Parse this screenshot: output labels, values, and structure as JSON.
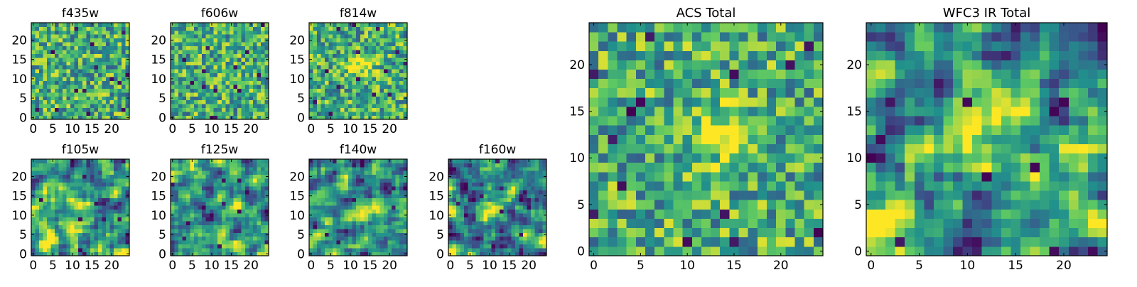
{
  "figure": {
    "colormap": "viridis",
    "colormap_stops": [
      "#440154",
      "#3b528b",
      "#21918c",
      "#5ec962",
      "#fde725"
    ]
  },
  "chart_data": [
    {
      "type": "heatmap",
      "title": "f435w",
      "grid_size": [
        25,
        25
      ],
      "xlim": [
        -0.5,
        24.5
      ],
      "ylim": [
        -0.5,
        24.5
      ],
      "xticks": [
        0,
        5,
        10,
        15,
        20
      ],
      "yticks": [
        0,
        5,
        10,
        15,
        20
      ],
      "texture": "noise",
      "peaks": []
    },
    {
      "type": "heatmap",
      "title": "f606w",
      "grid_size": [
        25,
        25
      ],
      "xlim": [
        -0.5,
        24.5
      ],
      "ylim": [
        -0.5,
        24.5
      ],
      "xticks": [
        0,
        5,
        10,
        15,
        20
      ],
      "yticks": [
        0,
        5,
        10,
        15,
        20
      ],
      "texture": "noise",
      "peaks": []
    },
    {
      "type": "heatmap",
      "title": "f814w",
      "grid_size": [
        25,
        25
      ],
      "xlim": [
        -0.5,
        24.5
      ],
      "ylim": [
        -0.5,
        24.5
      ],
      "xticks": [
        0,
        5,
        10,
        15,
        20
      ],
      "yticks": [
        0,
        5,
        10,
        15,
        20
      ],
      "texture": "noise",
      "peaks": [
        {
          "x": 13,
          "y": 13,
          "amp": 0.35,
          "sigma": 2.0
        }
      ]
    },
    {
      "type": "heatmap",
      "title": "f105w",
      "grid_size": [
        25,
        25
      ],
      "xlim": [
        -0.5,
        24.5
      ],
      "ylim": [
        -0.5,
        24.5
      ],
      "xticks": [
        0,
        5,
        10,
        15,
        20
      ],
      "yticks": [
        0,
        5,
        10,
        15,
        20
      ],
      "texture": "smooth",
      "peaks": [
        {
          "x": 13,
          "y": 12,
          "amp": 0.35,
          "sigma": 2.5
        },
        {
          "x": 3,
          "y": 4,
          "amp": 0.4,
          "sigma": 2.5
        }
      ]
    },
    {
      "type": "heatmap",
      "title": "f125w",
      "grid_size": [
        25,
        25
      ],
      "xlim": [
        -0.5,
        24.5
      ],
      "ylim": [
        -0.5,
        24.5
      ],
      "xticks": [
        0,
        5,
        10,
        15,
        20
      ],
      "yticks": [
        0,
        5,
        10,
        15,
        20
      ],
      "texture": "smooth",
      "peaks": [
        {
          "x": 14,
          "y": 12,
          "amp": 0.3,
          "sigma": 2.5
        }
      ]
    },
    {
      "type": "heatmap",
      "title": "f140w",
      "grid_size": [
        25,
        25
      ],
      "xlim": [
        -0.5,
        24.5
      ],
      "ylim": [
        -0.5,
        24.5
      ],
      "xticks": [
        0,
        5,
        10,
        15,
        20
      ],
      "yticks": [
        0,
        5,
        10,
        15,
        20
      ],
      "texture": "smooth",
      "peaks": [
        {
          "x": 13,
          "y": 12,
          "amp": 0.4,
          "sigma": 2.0
        }
      ]
    },
    {
      "type": "heatmap",
      "title": "f160w",
      "grid_size": [
        25,
        25
      ],
      "xlim": [
        -0.5,
        24.5
      ],
      "ylim": [
        -0.5,
        24.5
      ],
      "xticks": [
        0,
        5,
        10,
        15,
        20
      ],
      "yticks": [
        0,
        5,
        10,
        15,
        20
      ],
      "texture": "ring",
      "peaks": [
        {
          "x": 11,
          "y": 12,
          "amp": 0.45,
          "sigma": 2.0
        }
      ]
    },
    {
      "type": "heatmap",
      "title": "ACS Total",
      "grid_size": [
        25,
        25
      ],
      "xlim": [
        -0.5,
        24.5
      ],
      "ylim": [
        -0.5,
        24.5
      ],
      "xticks": [
        0,
        5,
        10,
        15,
        20
      ],
      "yticks": [
        0,
        5,
        10,
        15,
        20
      ],
      "texture": "noise",
      "peaks": [
        {
          "x": 14,
          "y": 13,
          "amp": 0.3,
          "sigma": 2.5
        }
      ]
    },
    {
      "type": "heatmap",
      "title": "WFC3 IR Total",
      "grid_size": [
        25,
        25
      ],
      "xlim": [
        -0.5,
        24.5
      ],
      "ylim": [
        -0.5,
        24.5
      ],
      "xticks": [
        0,
        5,
        10,
        15,
        20
      ],
      "yticks": [
        0,
        5,
        10,
        15,
        20
      ],
      "texture": "smooth",
      "peaks": [
        {
          "x": 12,
          "y": 13,
          "amp": 0.5,
          "sigma": 2.5
        },
        {
          "x": 1,
          "y": 4,
          "amp": 0.35,
          "sigma": 2.5
        }
      ]
    }
  ]
}
